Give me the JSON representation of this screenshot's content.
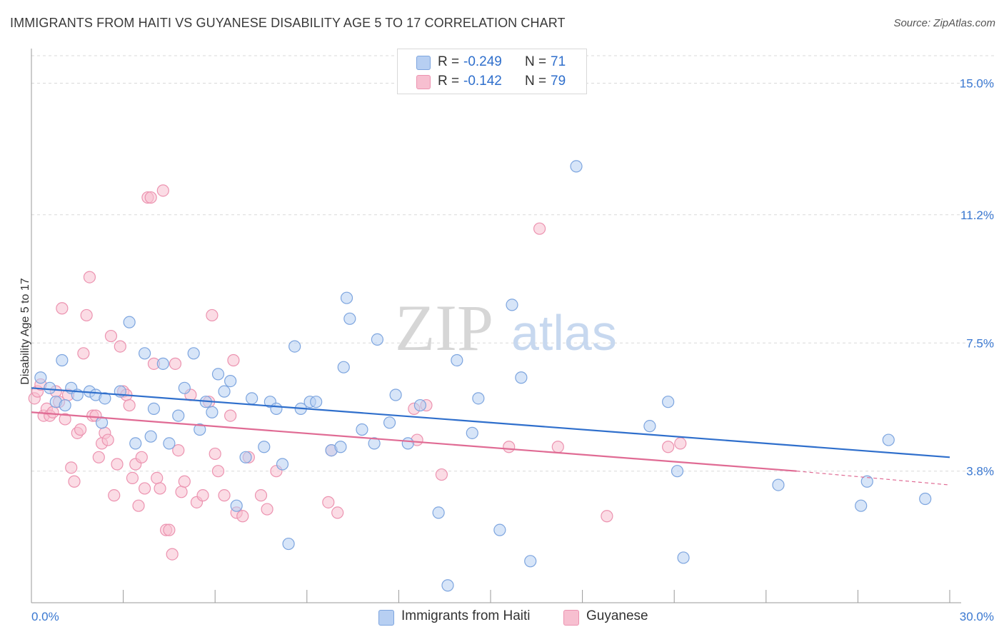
{
  "title": "IMMIGRANTS FROM HAITI VS GUYANESE DISABILITY AGE 5 TO 17 CORRELATION CHART",
  "source": "Source: ZipAtlas.com",
  "watermark": {
    "zip": "ZIP",
    "atlas": "atlas"
  },
  "legend": {
    "rows": [
      {
        "r_label": "R =",
        "r_value": "-0.249",
        "n_label": "N =",
        "n_value": "71"
      },
      {
        "r_label": "R =",
        "r_value": "-0.142",
        "n_label": "N =",
        "n_value": "79"
      }
    ]
  },
  "bottom_legend": {
    "haiti": "Immigrants from Haiti",
    "guyanese": "Guyanese"
  },
  "colors": {
    "haiti_fill": "#b7cff2",
    "haiti_stroke": "#7da5df",
    "haiti_line": "#2f6fcc",
    "guyanese_fill": "#f7bfd0",
    "guyanese_stroke": "#ec93b0",
    "guyanese_line": "#e06b94",
    "tick_label": "#3a78d1",
    "grid": "#d9d9d9"
  },
  "chart_data": {
    "type": "scatter",
    "title": "IMMIGRANTS FROM HAITI VS GUYANESE DISABILITY AGE 5 TO 17 CORRELATION CHART",
    "xlabel": "",
    "ylabel": "Disability Age 5 to 17",
    "xlim": [
      0,
      30
    ],
    "ylim": [
      0,
      16
    ],
    "x_tick_labels": [
      "0.0%",
      "30.0%"
    ],
    "y_ticks": [
      3.8,
      7.5,
      11.2,
      15.0
    ],
    "y_tick_labels": [
      "3.8%",
      "7.5%",
      "11.2%",
      "15.0%"
    ],
    "grid": "horizontal dashed",
    "legend_position": "top-center",
    "series": [
      {
        "name": "Immigrants from Haiti",
        "trend": {
          "x": [
            0,
            30
          ],
          "y": [
            6.2,
            4.2
          ]
        },
        "points": [
          [
            0.3,
            6.5
          ],
          [
            0.6,
            6.2
          ],
          [
            0.8,
            5.8
          ],
          [
            1.0,
            7.0
          ],
          [
            1.1,
            5.7
          ],
          [
            1.3,
            6.2
          ],
          [
            1.5,
            6.0
          ],
          [
            1.9,
            6.1
          ],
          [
            2.1,
            6.0
          ],
          [
            2.3,
            5.2
          ],
          [
            2.4,
            5.9
          ],
          [
            2.9,
            6.1
          ],
          [
            3.2,
            8.1
          ],
          [
            3.4,
            4.6
          ],
          [
            3.7,
            7.2
          ],
          [
            3.9,
            4.8
          ],
          [
            4.0,
            5.6
          ],
          [
            4.3,
            6.9
          ],
          [
            4.5,
            4.6
          ],
          [
            4.8,
            5.4
          ],
          [
            5.0,
            6.2
          ],
          [
            5.3,
            7.2
          ],
          [
            5.5,
            5.0
          ],
          [
            5.7,
            5.8
          ],
          [
            5.9,
            5.5
          ],
          [
            6.1,
            6.6
          ],
          [
            6.3,
            6.1
          ],
          [
            6.5,
            6.4
          ],
          [
            6.7,
            2.8
          ],
          [
            7.0,
            4.2
          ],
          [
            7.2,
            5.9
          ],
          [
            7.6,
            4.5
          ],
          [
            7.8,
            5.8
          ],
          [
            8.0,
            5.6
          ],
          [
            8.2,
            4.0
          ],
          [
            8.4,
            1.7
          ],
          [
            8.6,
            7.4
          ],
          [
            8.8,
            5.6
          ],
          [
            9.1,
            5.8
          ],
          [
            9.3,
            5.8
          ],
          [
            9.8,
            4.4
          ],
          [
            10.1,
            4.5
          ],
          [
            10.2,
            6.8
          ],
          [
            10.3,
            8.8
          ],
          [
            10.4,
            8.2
          ],
          [
            10.8,
            5.0
          ],
          [
            11.2,
            4.6
          ],
          [
            11.3,
            7.6
          ],
          [
            11.7,
            5.2
          ],
          [
            11.9,
            6.0
          ],
          [
            12.3,
            4.6
          ],
          [
            12.7,
            5.7
          ],
          [
            13.3,
            2.6
          ],
          [
            13.6,
            0.5
          ],
          [
            13.9,
            7.0
          ],
          [
            14.4,
            4.9
          ],
          [
            14.6,
            5.9
          ],
          [
            15.3,
            2.1
          ],
          [
            15.7,
            8.6
          ],
          [
            16.0,
            6.5
          ],
          [
            16.3,
            1.2
          ],
          [
            17.8,
            12.6
          ],
          [
            20.2,
            5.1
          ],
          [
            20.8,
            5.8
          ],
          [
            21.1,
            3.8
          ],
          [
            21.3,
            1.3
          ],
          [
            24.4,
            3.4
          ],
          [
            27.1,
            2.8
          ],
          [
            27.3,
            3.5
          ],
          [
            28.0,
            4.7
          ],
          [
            29.2,
            3.0
          ]
        ]
      },
      {
        "name": "Guyanese",
        "trend": {
          "x": [
            0,
            25
          ],
          "y": [
            5.5,
            3.8
          ]
        },
        "trend_extension": {
          "x": [
            25,
            30
          ],
          "y": [
            3.8,
            3.4
          ]
        },
        "points": [
          [
            0.1,
            5.9
          ],
          [
            0.2,
            6.1
          ],
          [
            0.3,
            6.3
          ],
          [
            0.4,
            5.4
          ],
          [
            0.5,
            5.6
          ],
          [
            0.6,
            5.4
          ],
          [
            0.7,
            5.5
          ],
          [
            0.8,
            6.1
          ],
          [
            0.9,
            5.8
          ],
          [
            1.0,
            8.5
          ],
          [
            1.1,
            5.3
          ],
          [
            1.2,
            6.0
          ],
          [
            1.3,
            3.9
          ],
          [
            1.4,
            3.5
          ],
          [
            1.5,
            4.9
          ],
          [
            1.6,
            5.0
          ],
          [
            1.7,
            7.2
          ],
          [
            1.8,
            8.3
          ],
          [
            1.9,
            9.4
          ],
          [
            2.0,
            5.4
          ],
          [
            2.1,
            5.4
          ],
          [
            2.2,
            4.2
          ],
          [
            2.3,
            4.6
          ],
          [
            2.4,
            4.9
          ],
          [
            2.5,
            4.7
          ],
          [
            2.6,
            7.7
          ],
          [
            2.7,
            3.1
          ],
          [
            2.8,
            4.0
          ],
          [
            2.9,
            7.4
          ],
          [
            3.0,
            6.1
          ],
          [
            3.1,
            6.0
          ],
          [
            3.2,
            5.7
          ],
          [
            3.3,
            3.6
          ],
          [
            3.4,
            4.0
          ],
          [
            3.5,
            2.8
          ],
          [
            3.6,
            4.2
          ],
          [
            3.7,
            3.3
          ],
          [
            3.8,
            11.7
          ],
          [
            3.9,
            11.7
          ],
          [
            4.0,
            6.9
          ],
          [
            4.1,
            3.6
          ],
          [
            4.2,
            3.3
          ],
          [
            4.3,
            11.9
          ],
          [
            4.4,
            2.1
          ],
          [
            4.5,
            2.1
          ],
          [
            4.6,
            1.4
          ],
          [
            4.7,
            6.9
          ],
          [
            4.8,
            4.4
          ],
          [
            4.9,
            3.2
          ],
          [
            5.0,
            3.5
          ],
          [
            5.2,
            6.0
          ],
          [
            5.4,
            2.9
          ],
          [
            5.6,
            3.1
          ],
          [
            5.8,
            5.8
          ],
          [
            5.9,
            8.3
          ],
          [
            6.0,
            4.3
          ],
          [
            6.1,
            3.8
          ],
          [
            6.3,
            3.1
          ],
          [
            6.5,
            5.4
          ],
          [
            6.6,
            7.0
          ],
          [
            6.7,
            2.6
          ],
          [
            6.9,
            2.5
          ],
          [
            7.1,
            4.2
          ],
          [
            7.5,
            3.1
          ],
          [
            7.7,
            2.7
          ],
          [
            8.0,
            3.8
          ],
          [
            9.7,
            2.9
          ],
          [
            9.8,
            4.4
          ],
          [
            10.0,
            2.6
          ],
          [
            12.5,
            5.6
          ],
          [
            12.6,
            4.7
          ],
          [
            12.9,
            5.7
          ],
          [
            13.4,
            3.7
          ],
          [
            15.6,
            4.5
          ],
          [
            16.6,
            10.8
          ],
          [
            17.2,
            4.5
          ],
          [
            18.8,
            2.5
          ],
          [
            20.8,
            4.5
          ],
          [
            21.2,
            4.6
          ]
        ]
      }
    ]
  }
}
